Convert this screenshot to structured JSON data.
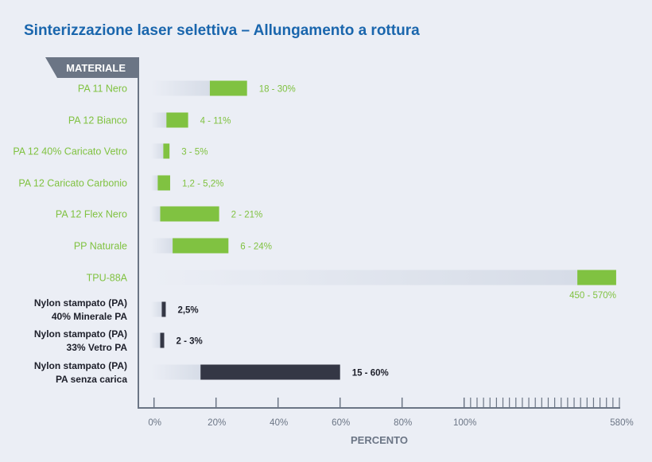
{
  "chart_data": {
    "type": "bar",
    "title": "Sinterizzazione laser selettiva – Allungamento a rottura",
    "category_header": "MATERIALE",
    "xlabel": "PERCENTO",
    "x_ticks": [
      "0%",
      "20%",
      "40%",
      "60%",
      "80%",
      "100%",
      "580%"
    ],
    "x_scale": "piecewise linear: 0-100% expanded, 100-580% compressed with minor ticks every 20%",
    "xlim": [
      0,
      580
    ],
    "colors": {
      "sls": "#80c241",
      "molded": "#343745",
      "axis": "#6b7585",
      "title": "#1a66ad"
    },
    "rows": [
      {
        "label": [
          "PA 11 Nero"
        ],
        "min": 18,
        "max": 30,
        "value_label": "18 - 30%",
        "group": "sls"
      },
      {
        "label": [
          "PA 12 Bianco"
        ],
        "min": 4,
        "max": 11,
        "value_label": "4 - 11%",
        "group": "sls"
      },
      {
        "label": [
          "PA 12 40% Caricato Vetro"
        ],
        "min": 3,
        "max": 5,
        "value_label": "3 - 5%",
        "group": "sls"
      },
      {
        "label": [
          "PA 12 Caricato Carbonio"
        ],
        "min": 1.2,
        "max": 5.2,
        "value_label": "1,2 - 5,2%",
        "group": "sls"
      },
      {
        "label": [
          "PA 12 Flex Nero"
        ],
        "min": 2,
        "max": 21,
        "value_label": "2 - 21%",
        "group": "sls"
      },
      {
        "label": [
          "PP Naturale"
        ],
        "min": 6,
        "max": 24,
        "value_label": "6 - 24%",
        "group": "sls"
      },
      {
        "label": [
          "TPU-88A"
        ],
        "min": 450,
        "max": 570,
        "value_label": "450 - 570%",
        "group": "sls"
      },
      {
        "label": [
          "Nylon stampato (PA)",
          "40% Minerale PA"
        ],
        "min": 2.5,
        "max": 2.5,
        "value_label": "2,5%",
        "group": "molded"
      },
      {
        "label": [
          "Nylon stampato (PA)",
          "33% Vetro PA"
        ],
        "min": 2,
        "max": 3,
        "value_label": "2 - 3%",
        "group": "molded"
      },
      {
        "label": [
          "Nylon stampato (PA)",
          "PA senza carica"
        ],
        "min": 15,
        "max": 60,
        "value_label": "15 - 60%",
        "group": "molded"
      }
    ]
  }
}
